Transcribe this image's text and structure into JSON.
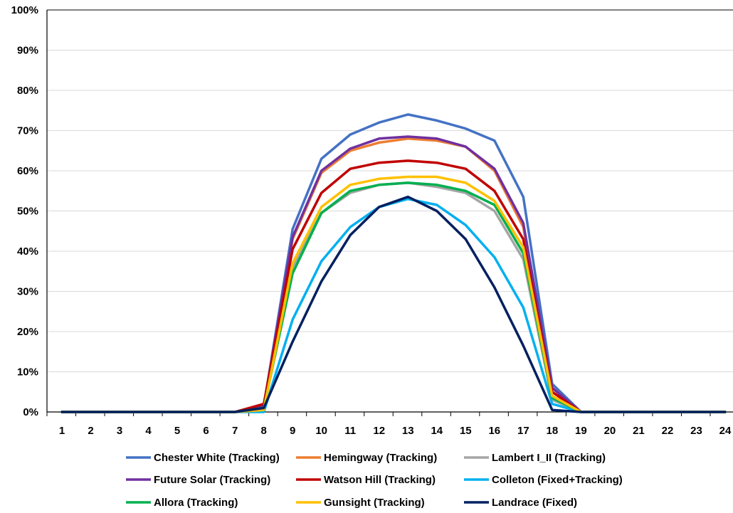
{
  "chart_data": {
    "type": "line",
    "title": "",
    "xlabel": "",
    "ylabel": "",
    "x": [
      1,
      2,
      3,
      4,
      5,
      6,
      7,
      8,
      9,
      10,
      11,
      12,
      13,
      14,
      15,
      16,
      17,
      18,
      19,
      20,
      21,
      22,
      23,
      24
    ],
    "ylim": [
      0,
      100
    ],
    "yticks": [
      "0%",
      "10%",
      "20%",
      "30%",
      "40%",
      "50%",
      "60%",
      "70%",
      "80%",
      "90%",
      "100%"
    ],
    "grid": true,
    "legend_position": "bottom",
    "series": [
      {
        "name": "Chester White (Tracking)",
        "color": "#4472C4",
        "values": [
          0,
          0,
          0,
          0,
          0,
          0,
          0,
          1.5,
          45.5,
          63,
          69,
          72,
          74,
          72.5,
          70.5,
          67.5,
          53.5,
          7,
          0,
          0,
          0,
          0,
          0,
          0
        ]
      },
      {
        "name": "Hemingway (Tracking)",
        "color": "#ED7D31",
        "values": [
          0,
          0,
          0,
          0,
          0,
          0,
          0,
          1.5,
          43,
          59.5,
          65,
          67,
          68,
          67.5,
          66,
          60,
          46,
          6,
          0,
          0,
          0,
          0,
          0,
          0
        ]
      },
      {
        "name": "Lambert I_II (Tracking)",
        "color": "#A5A5A5",
        "values": [
          0,
          0,
          0,
          0,
          0,
          0,
          0,
          1,
          36,
          49.5,
          54.5,
          56.5,
          57,
          56,
          54.5,
          50,
          38,
          3,
          0,
          0,
          0,
          0,
          0,
          0
        ]
      },
      {
        "name": "Future Solar (Tracking)",
        "color": "#7030A0",
        "values": [
          0,
          0,
          0,
          0,
          0,
          0,
          0,
          1.5,
          43.5,
          60,
          65.5,
          68,
          68.5,
          68,
          66,
          60.5,
          47,
          6,
          0,
          0,
          0,
          0,
          0,
          0
        ]
      },
      {
        "name": "Watson Hill (Tracking)",
        "color": "#C00000",
        "values": [
          0,
          0,
          0,
          0,
          0,
          0,
          0,
          2,
          40.5,
          54.5,
          60.5,
          62,
          62.5,
          62,
          60.5,
          55,
          43,
          5,
          0,
          0,
          0,
          0,
          0,
          0
        ]
      },
      {
        "name": "Colleton (Fixed+Tracking)",
        "color": "#00B0F0",
        "values": [
          0,
          0,
          0,
          0,
          0,
          0,
          0,
          0,
          23,
          37.5,
          46,
          51,
          53,
          51.5,
          46.5,
          38.5,
          26,
          2,
          0,
          0,
          0,
          0,
          0,
          0
        ]
      },
      {
        "name": "Allora (Tracking)",
        "color": "#00B050",
        "values": [
          0,
          0,
          0,
          0,
          0,
          0,
          0,
          1,
          34.5,
          49.5,
          55,
          56.5,
          57,
          56.5,
          55,
          51.5,
          39.5,
          3.5,
          0,
          0,
          0,
          0,
          0,
          0
        ]
      },
      {
        "name": "Gunsight (Tracking)",
        "color": "#FFC000",
        "values": [
          0,
          0,
          0,
          0,
          0,
          0,
          0,
          0.5,
          37,
          51,
          56.5,
          58,
          58.5,
          58.5,
          57,
          52.5,
          41,
          4,
          0,
          0,
          0,
          0,
          0,
          0
        ]
      },
      {
        "name": "Landrace (Fixed)",
        "color": "#002060",
        "values": [
          0,
          0,
          0,
          0,
          0,
          0,
          0,
          1,
          17.5,
          32.5,
          44,
          51,
          53.5,
          50,
          43,
          31,
          16.5,
          0.5,
          0,
          0,
          0,
          0,
          0,
          0
        ]
      }
    ]
  }
}
